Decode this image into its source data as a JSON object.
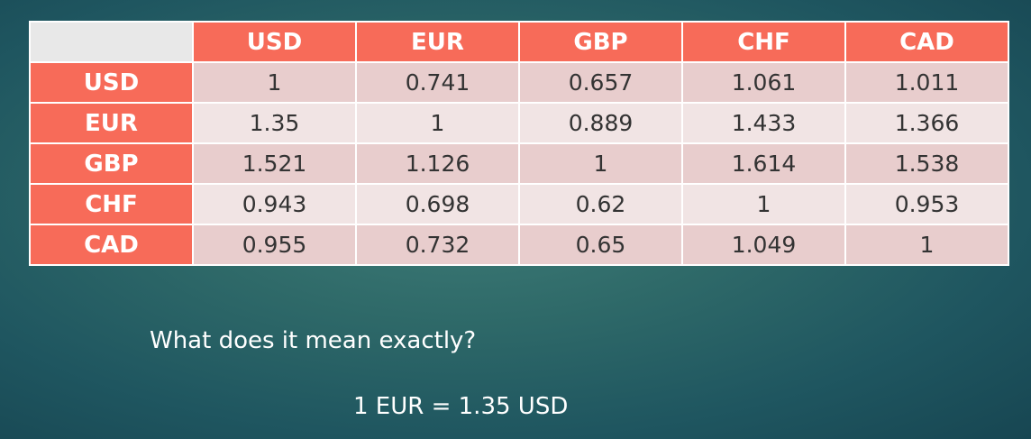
{
  "table": {
    "columns": [
      "USD",
      "EUR",
      "GBP",
      "CHF",
      "CAD"
    ],
    "rows": [
      {
        "label": "USD",
        "values": [
          "1",
          "0.741",
          "0.657",
          "1.061",
          "1.011"
        ]
      },
      {
        "label": "EUR",
        "values": [
          "1.35",
          "1",
          "0.889",
          "1.433",
          "1.366"
        ]
      },
      {
        "label": "GBP",
        "values": [
          "1.521",
          "1.126",
          "1",
          "1.614",
          "1.538"
        ]
      },
      {
        "label": "CHF",
        "values": [
          "0.943",
          "0.698",
          "0.62",
          "1",
          "0.953"
        ]
      },
      {
        "label": "CAD",
        "values": [
          "0.955",
          "0.732",
          "0.65",
          "1.049",
          "1"
        ]
      }
    ],
    "highlighted_cell": {
      "row": "EUR",
      "column": "USD"
    },
    "colors": {
      "header": "#f76b59",
      "highlight": "#0e9b4b",
      "cell_dark": "#e8cdcd",
      "cell_light": "#f1e4e4"
    }
  },
  "text": {
    "question": "What does it mean exactly?",
    "answer": "1 EUR = 1.35 USD"
  }
}
